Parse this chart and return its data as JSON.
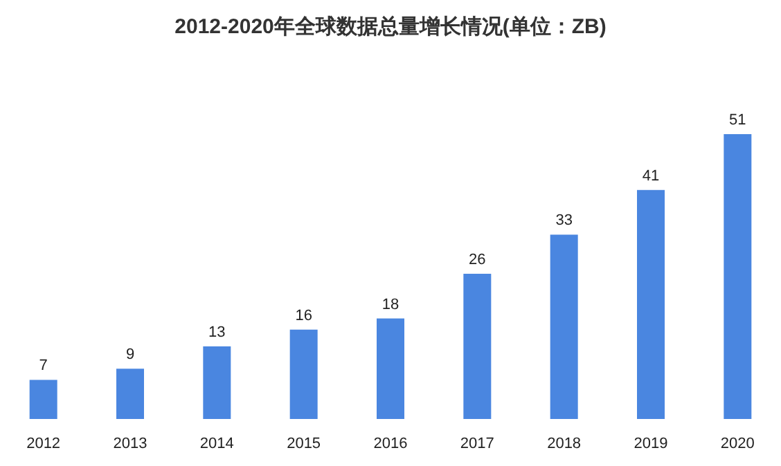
{
  "chart_data": {
    "type": "bar",
    "title": "2012-2020年全球数据总量增长情况(单位：ZB)",
    "categories": [
      "2012",
      "2013",
      "2014",
      "2015",
      "2016",
      "2017",
      "2018",
      "2019",
      "2020"
    ],
    "values": [
      7,
      9,
      13,
      16,
      18,
      26,
      33,
      41,
      51
    ],
    "color": "#4a86e0",
    "data_labels": true
  }
}
